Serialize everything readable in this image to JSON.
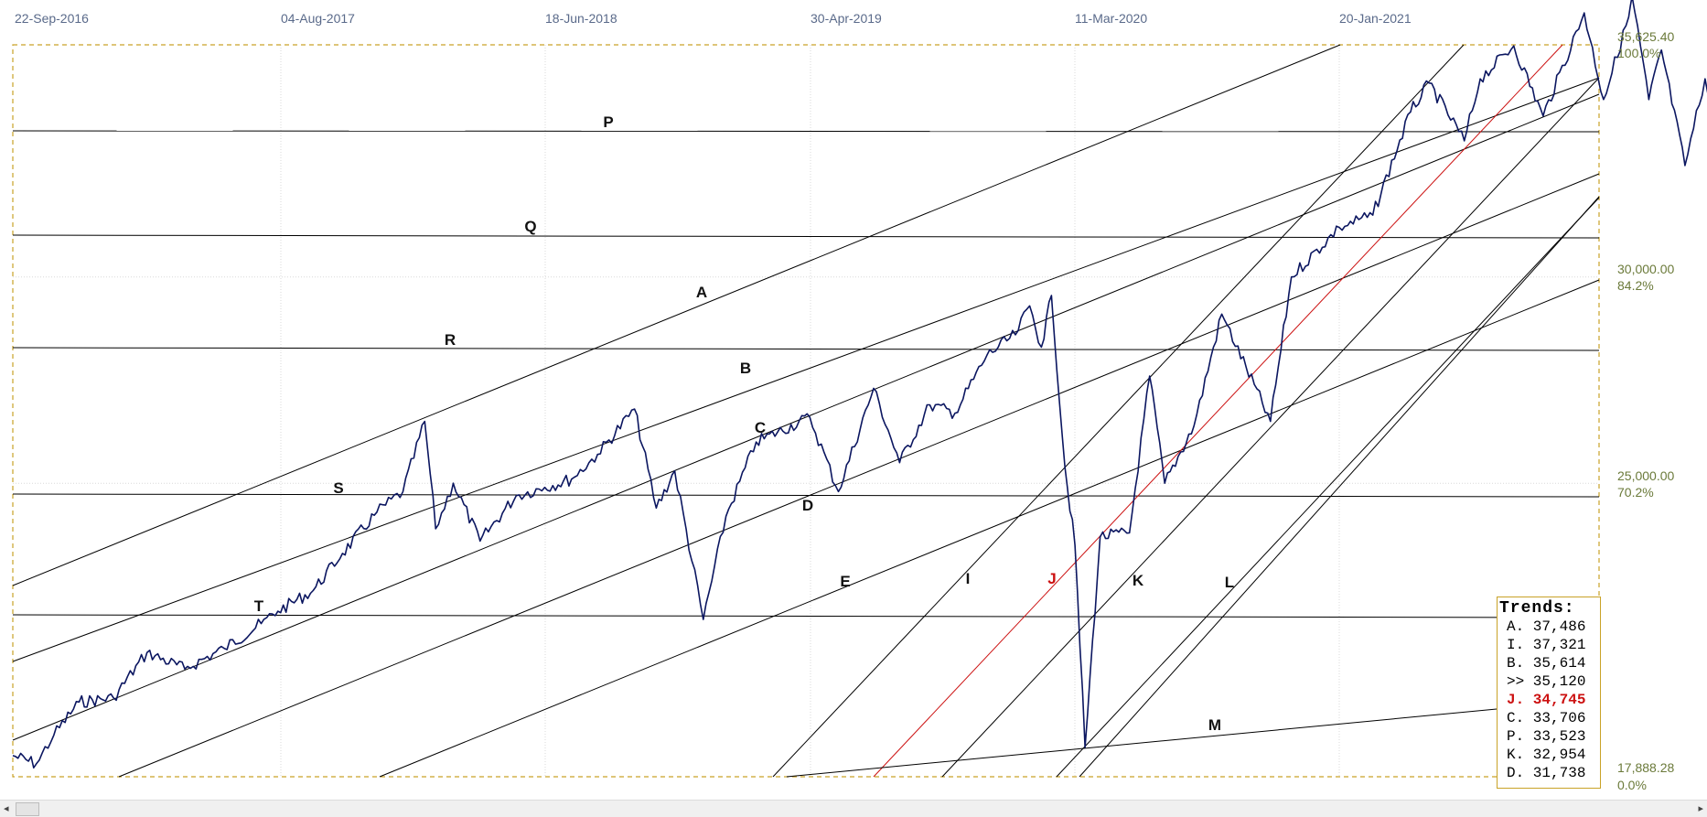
{
  "date_labels": [
    "22-Sep-2016",
    "04-Aug-2017",
    "18-Jun-2018",
    "30-Apr-2019",
    "11-Mar-2020",
    "20-Jan-2021"
  ],
  "axis": {
    "top_value": "35,625.40",
    "top_pct": "100.0%",
    "mid_value": "30,000.00",
    "mid_pct": "84.2%",
    "low_value": "25,000.00",
    "low_pct": "70.2%",
    "bottom_value": "17,888.28",
    "bottom_pct": "0.0%"
  },
  "colors": {
    "price": "#0b1660",
    "trend": "#000000",
    "highlight": "#cc1111",
    "frame": "#c9a227",
    "grid": "#d9d9d9"
  },
  "line_labels": {
    "P": "P",
    "Q": "Q",
    "R": "R",
    "S": "S",
    "T": "T",
    "A": "A",
    "B": "B",
    "C": "C",
    "D": "D",
    "E": "E",
    "I": "I",
    "J": "J",
    "K": "K",
    "L": "L",
    "M": "M"
  },
  "trends": {
    "title": "Trends:",
    "rows": [
      {
        "text": "A. 37,486",
        "highlight": false
      },
      {
        "text": "I. 37,321",
        "highlight": false
      },
      {
        "text": "B. 35,614",
        "highlight": false
      },
      {
        "text": ">> 35,120",
        "highlight": false
      },
      {
        "text": "J. 34,745",
        "highlight": true
      },
      {
        "text": "C. 33,706",
        "highlight": false
      },
      {
        "text": "P. 33,523",
        "highlight": false
      },
      {
        "text": "K. 32,954",
        "highlight": false
      },
      {
        "text": "D. 31,738",
        "highlight": false
      }
    ]
  },
  "chart_data": {
    "type": "line",
    "ylim": [
      17888.28,
      35625.4
    ],
    "x_ticks": [
      "22-Sep-2016",
      "04-Aug-2017",
      "18-Jun-2018",
      "30-Apr-2019",
      "11-Mar-2020",
      "20-Jan-2021"
    ],
    "series": [
      {
        "points": [
          [
            "2016-09-22",
            18400
          ],
          [
            "2016-10-20",
            18200
          ],
          [
            "2016-11-10",
            18900
          ],
          [
            "2016-12-10",
            19700
          ],
          [
            "2017-01-20",
            19800
          ],
          [
            "2017-03-01",
            20900
          ],
          [
            "2017-04-15",
            20500
          ],
          [
            "2017-06-01",
            21000
          ],
          [
            "2017-07-15",
            21600
          ],
          [
            "2017-08-04",
            21900
          ],
          [
            "2017-09-15",
            22400
          ],
          [
            "2017-10-20",
            23300
          ],
          [
            "2017-11-30",
            24300
          ],
          [
            "2017-12-31",
            24800
          ],
          [
            "2018-01-26",
            26500
          ],
          [
            "2018-02-08",
            23900
          ],
          [
            "2018-03-01",
            25000
          ],
          [
            "2018-04-02",
            23600
          ],
          [
            "2018-05-15",
            24700
          ],
          [
            "2018-06-18",
            24900
          ],
          [
            "2018-07-20",
            25100
          ],
          [
            "2018-08-20",
            25700
          ],
          [
            "2018-10-03",
            26800
          ],
          [
            "2018-10-29",
            24400
          ],
          [
            "2018-11-20",
            25300
          ],
          [
            "2018-12-24",
            21700
          ],
          [
            "2019-01-20",
            24200
          ],
          [
            "2019-02-25",
            26000
          ],
          [
            "2019-04-30",
            26600
          ],
          [
            "2019-06-03",
            24800
          ],
          [
            "2019-07-15",
            27300
          ],
          [
            "2019-08-15",
            25500
          ],
          [
            "2019-09-20",
            26900
          ],
          [
            "2019-10-20",
            26700
          ],
          [
            "2019-11-27",
            28100
          ],
          [
            "2019-12-31",
            28600
          ],
          [
            "2020-01-17",
            29300
          ],
          [
            "2020-01-31",
            28300
          ],
          [
            "2020-02-12",
            29550
          ],
          [
            "2020-02-28",
            25400
          ],
          [
            "2020-03-11",
            23500
          ],
          [
            "2020-03-23",
            18600
          ],
          [
            "2020-04-10",
            23700
          ],
          [
            "2020-05-15",
            23800
          ],
          [
            "2020-06-08",
            27600
          ],
          [
            "2020-06-26",
            25000
          ],
          [
            "2020-07-31",
            26400
          ],
          [
            "2020-09-02",
            29100
          ],
          [
            "2020-10-30",
            26500
          ],
          [
            "2020-11-24",
            30000
          ],
          [
            "2021-01-20",
            31200
          ],
          [
            "2021-03-01",
            31500
          ],
          [
            "2021-04-15",
            34000
          ],
          [
            "2021-05-07",
            34700
          ],
          [
            "2021-06-18",
            33300
          ],
          [
            "2021-07-07",
            34800
          ],
          [
            "2021-08-16",
            35600
          ],
          [
            "2021-09-20",
            33900
          ],
          [
            "2021-11-08",
            36400
          ],
          [
            "2021-12-01",
            34300
          ],
          [
            "2021-12-31",
            36300
          ],
          [
            "2022-01-04",
            36800
          ],
          [
            "2022-01-24",
            34300
          ],
          [
            "2022-02-08",
            35500
          ],
          [
            "2022-03-08",
            32700
          ],
          [
            "2022-04-01",
            34800
          ],
          [
            "2022-04-26",
            33250
          ],
          [
            "2022-05-10",
            34000
          ]
        ]
      }
    ],
    "trend_lines": [
      "A",
      "B",
      "C",
      "D",
      "E",
      "I",
      "J",
      "K",
      "L",
      "M",
      "P",
      "Q",
      "R",
      "S",
      "T"
    ],
    "grid": true
  }
}
